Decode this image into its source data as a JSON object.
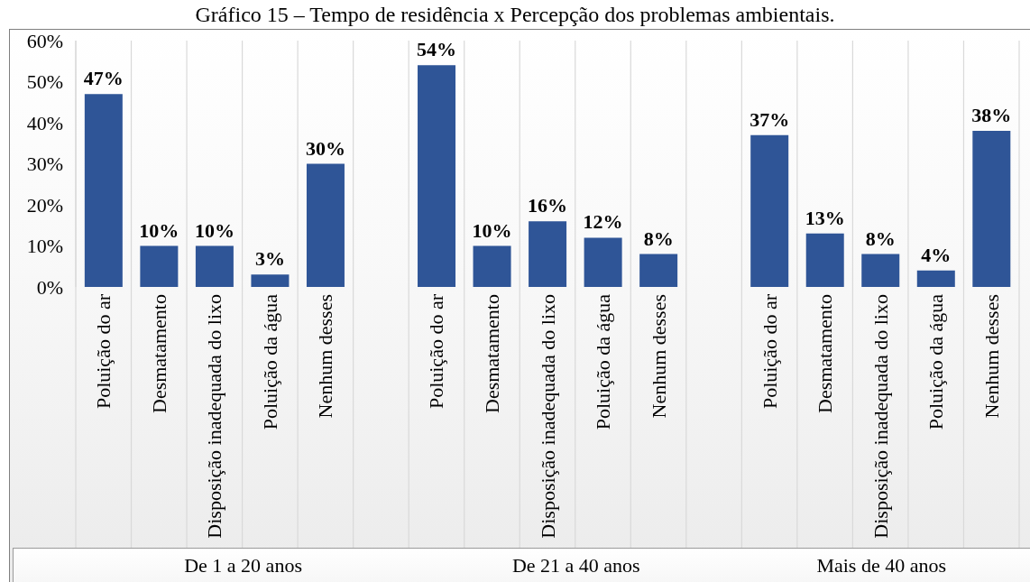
{
  "chart_data": {
    "type": "bar",
    "title": "Gráfico 15 – Tempo de residência x Percepção dos problemas ambientais.",
    "categories": [
      "Poluição do ar",
      "Desmatamento",
      "Disposição inadequada do lixo",
      "Poluição da água",
      "Nenhum desses",
      null,
      "Poluição do ar",
      "Desmatamento",
      "Disposição inadequada do lixo",
      "Poluição da água",
      "Nenhum desses",
      null,
      "Poluição do ar",
      "Desmatamento",
      "Disposição inadequada do lixo",
      "Poluição da água",
      "Nenhum desses"
    ],
    "values": [
      47,
      10,
      10,
      3,
      30,
      null,
      54,
      10,
      16,
      12,
      8,
      null,
      37,
      13,
      8,
      4,
      38
    ],
    "value_labels": [
      "47%",
      "10%",
      "10%",
      "3%",
      "30%",
      null,
      "54%",
      "10%",
      "16%",
      "12%",
      "8%",
      null,
      "37%",
      "13%",
      "8%",
      "4%",
      "38%"
    ],
    "color": "#2f5597",
    "ylim": [
      0,
      60
    ],
    "yticks": [
      {
        "value": 0,
        "label": "0%"
      },
      {
        "value": 10,
        "label": "10%"
      },
      {
        "value": 20,
        "label": "20%"
      },
      {
        "value": 30,
        "label": "30%"
      },
      {
        "value": 40,
        "label": "40%"
      },
      {
        "value": 50,
        "label": "50%"
      },
      {
        "value": 60,
        "label": "60%"
      }
    ],
    "grid": "x",
    "annotations": [
      "De 1 a 20 anos",
      "De 21 a 40 anos",
      "Mais de 40 anos"
    ]
  }
}
